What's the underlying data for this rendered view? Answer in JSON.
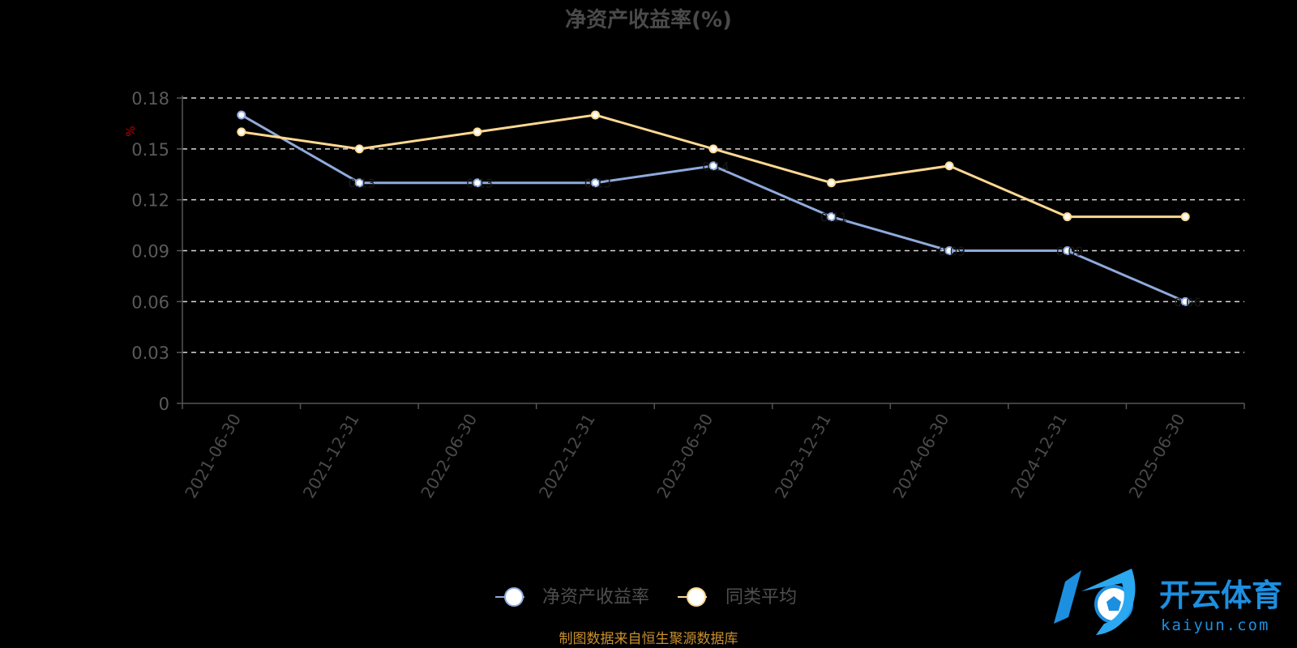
{
  "chart_data": {
    "type": "line",
    "title": "净资产收益率(%)",
    "ylabel": "%",
    "xlabel": "",
    "categories": [
      "2021-06-30",
      "2021-12-31",
      "2022-06-30",
      "2022-12-31",
      "2023-06-30",
      "2023-12-31",
      "2024-06-30",
      "2024-12-31",
      "2025-06-30"
    ],
    "ylim": [
      0,
      0.18
    ],
    "yticks": [
      "0",
      "0.03",
      "0.06",
      "0.09",
      "0.12",
      "0.15",
      "0.18"
    ],
    "grid": true,
    "legend_position": "bottom-center",
    "series": [
      {
        "name": "净资产收益率",
        "values": [
          0.17,
          0.13,
          0.13,
          0.13,
          0.14,
          0.11,
          0.09,
          0.09,
          0.06
        ],
        "color": "#8faadc",
        "labels": [
          "",
          "0.13",
          "0.13",
          "0.13",
          "0.14",
          "0.11",
          "0.09",
          "0.09",
          "0.06"
        ]
      },
      {
        "name": "同类平均",
        "values": [
          0.16,
          0.15,
          0.16,
          0.17,
          0.15,
          0.13,
          0.14,
          0.11,
          0.11
        ],
        "color": "#ffd991"
      }
    ]
  },
  "source_note": "制图数据来自恒生聚源数据库",
  "watermark": {
    "cn": "开云体育",
    "en": "kaiyun.com",
    "color": "#1d8fe0"
  }
}
